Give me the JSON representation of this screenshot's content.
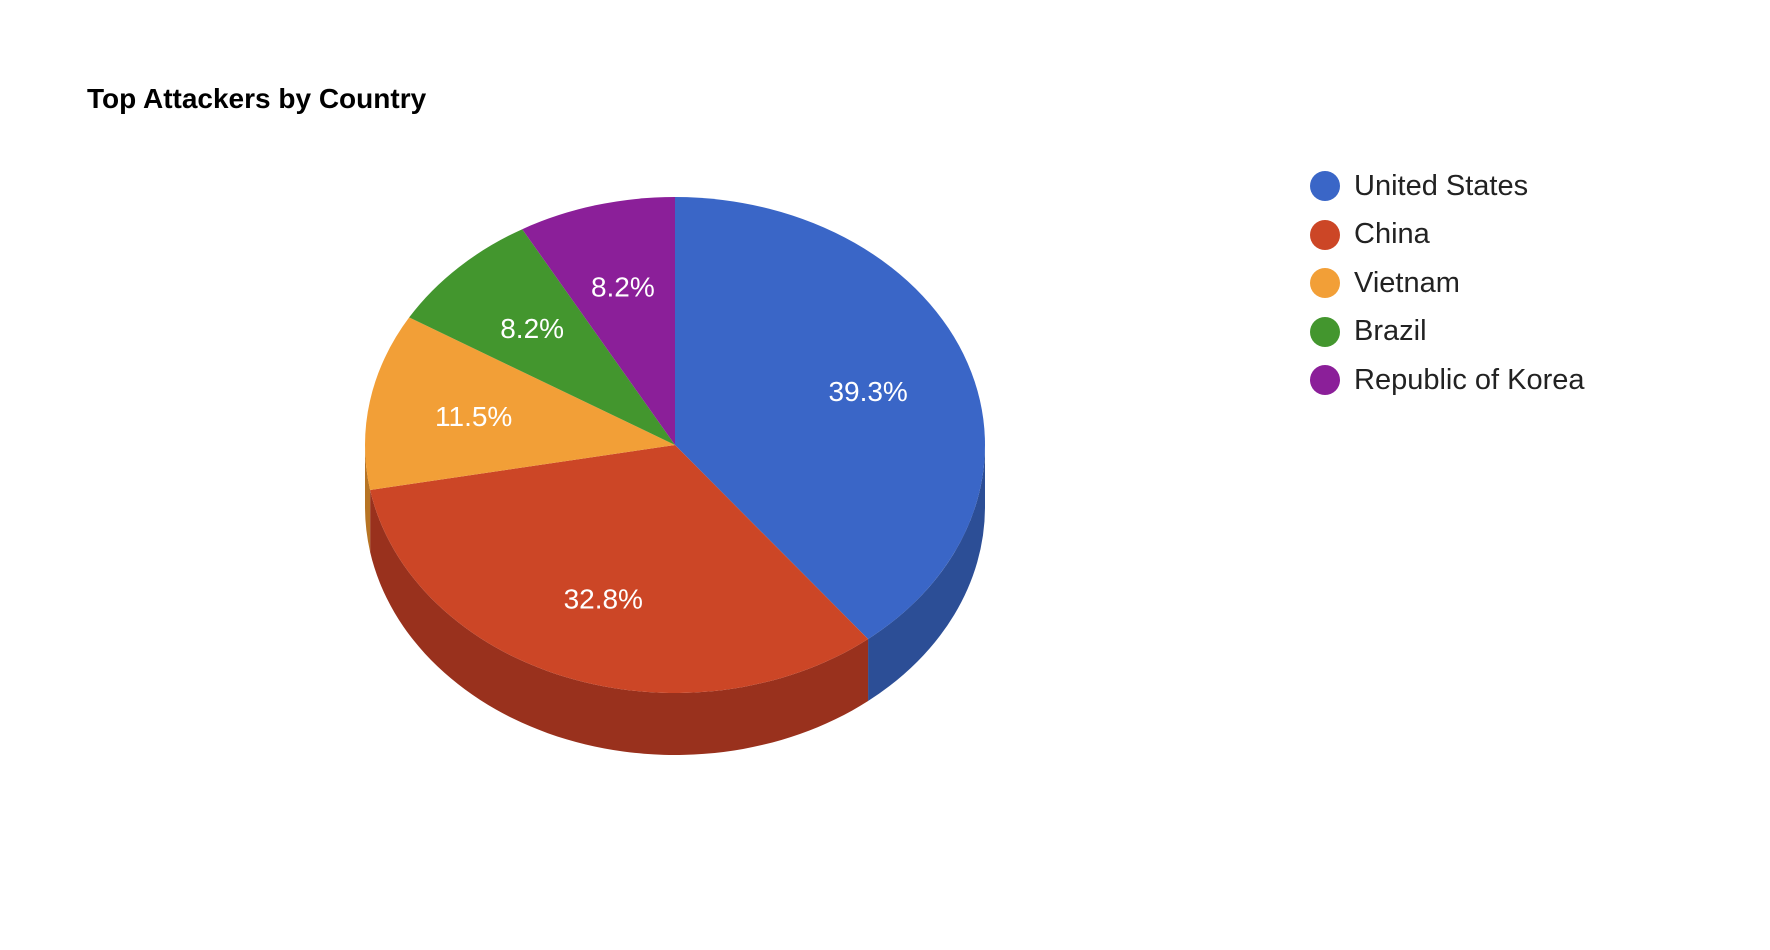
{
  "chart_data": {
    "type": "pie",
    "title": "Top Attackers by Country",
    "three_d": true,
    "legend_position": "right",
    "categories": [
      "United States",
      "China",
      "Vietnam",
      "Brazil",
      "Republic of Korea"
    ],
    "values": [
      39.3,
      32.8,
      11.5,
      8.2,
      8.2
    ],
    "labels": [
      "39.3%",
      "32.8%",
      "11.5%",
      "8.2%",
      "8.2%"
    ],
    "colors": [
      "#3a66c7",
      "#cc4626",
      "#f29f37",
      "#43962e",
      "#8b1f99"
    ],
    "side_colors": [
      "#2c4e96",
      "#99311d",
      "#b77424",
      "#2e6d20",
      "#651571"
    ]
  }
}
